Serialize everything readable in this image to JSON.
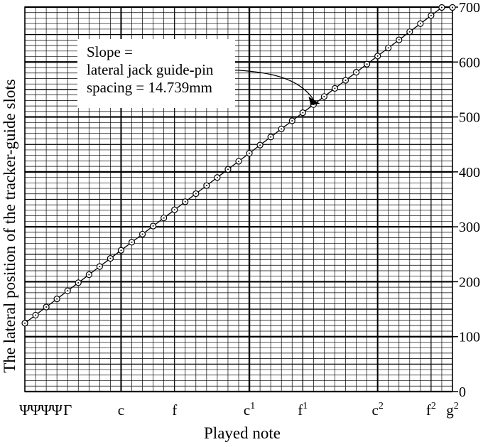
{
  "chart_data": {
    "type": "line",
    "title": "",
    "xlabel": "Played note",
    "ylabel": "The lateral position of the tracker-guide slots",
    "ylim": [
      0,
      700
    ],
    "yticks": [
      0,
      100,
      200,
      300,
      400,
      500,
      600,
      700
    ],
    "grid": true,
    "x_tick_labels": [
      {
        "note_index": 0,
        "label": "Ψ"
      },
      {
        "note_index": 1,
        "label": "Ψ"
      },
      {
        "note_index": 2,
        "label": "Ψ"
      },
      {
        "note_index": 3,
        "label": "Ψ"
      },
      {
        "note_index": 4,
        "label": "Γ"
      },
      {
        "note_index": 9,
        "label": "c"
      },
      {
        "note_index": 14,
        "label": "f"
      },
      {
        "note_index": 21,
        "base": "c",
        "sup": "1"
      },
      {
        "note_index": 26,
        "base": "f",
        "sup": "1"
      },
      {
        "note_index": 33,
        "base": "c",
        "sup": "2"
      },
      {
        "note_index": 38,
        "base": "f",
        "sup": "2"
      },
      {
        "note_index": 40,
        "base": "g",
        "sup": "2"
      }
    ],
    "series": [
      {
        "note_index": [
          0,
          1,
          2,
          3,
          4,
          5,
          6,
          7,
          8,
          9,
          10,
          11,
          12,
          13,
          14,
          15,
          16,
          17,
          18,
          19,
          20,
          21,
          22,
          23,
          24,
          25,
          26,
          27,
          28,
          29,
          30,
          31,
          32,
          33,
          34,
          35,
          36,
          37,
          38,
          39,
          40
        ],
        "y": [
          124.5,
          139.2,
          154.0,
          168.7,
          183.5,
          198.2,
          212.9,
          227.7,
          242.4,
          257.2,
          271.9,
          286.6,
          301.4,
          316.1,
          330.9,
          345.6,
          360.3,
          375.1,
          389.8,
          404.6,
          419.3,
          434.0,
          448.8,
          463.5,
          478.3,
          493.0,
          507.7,
          522.5,
          537.2,
          552.0,
          566.7,
          581.4,
          596.2,
          610.9,
          625.7,
          640.4,
          655.1,
          669.9,
          684.6,
          699.4,
          699.4
        ]
      }
    ],
    "annotation": {
      "lines": [
        "Slope =",
        "lateral jack guide-pin",
        "spacing = 14.739mm"
      ],
      "arrow_to_note_index": 28
    }
  }
}
